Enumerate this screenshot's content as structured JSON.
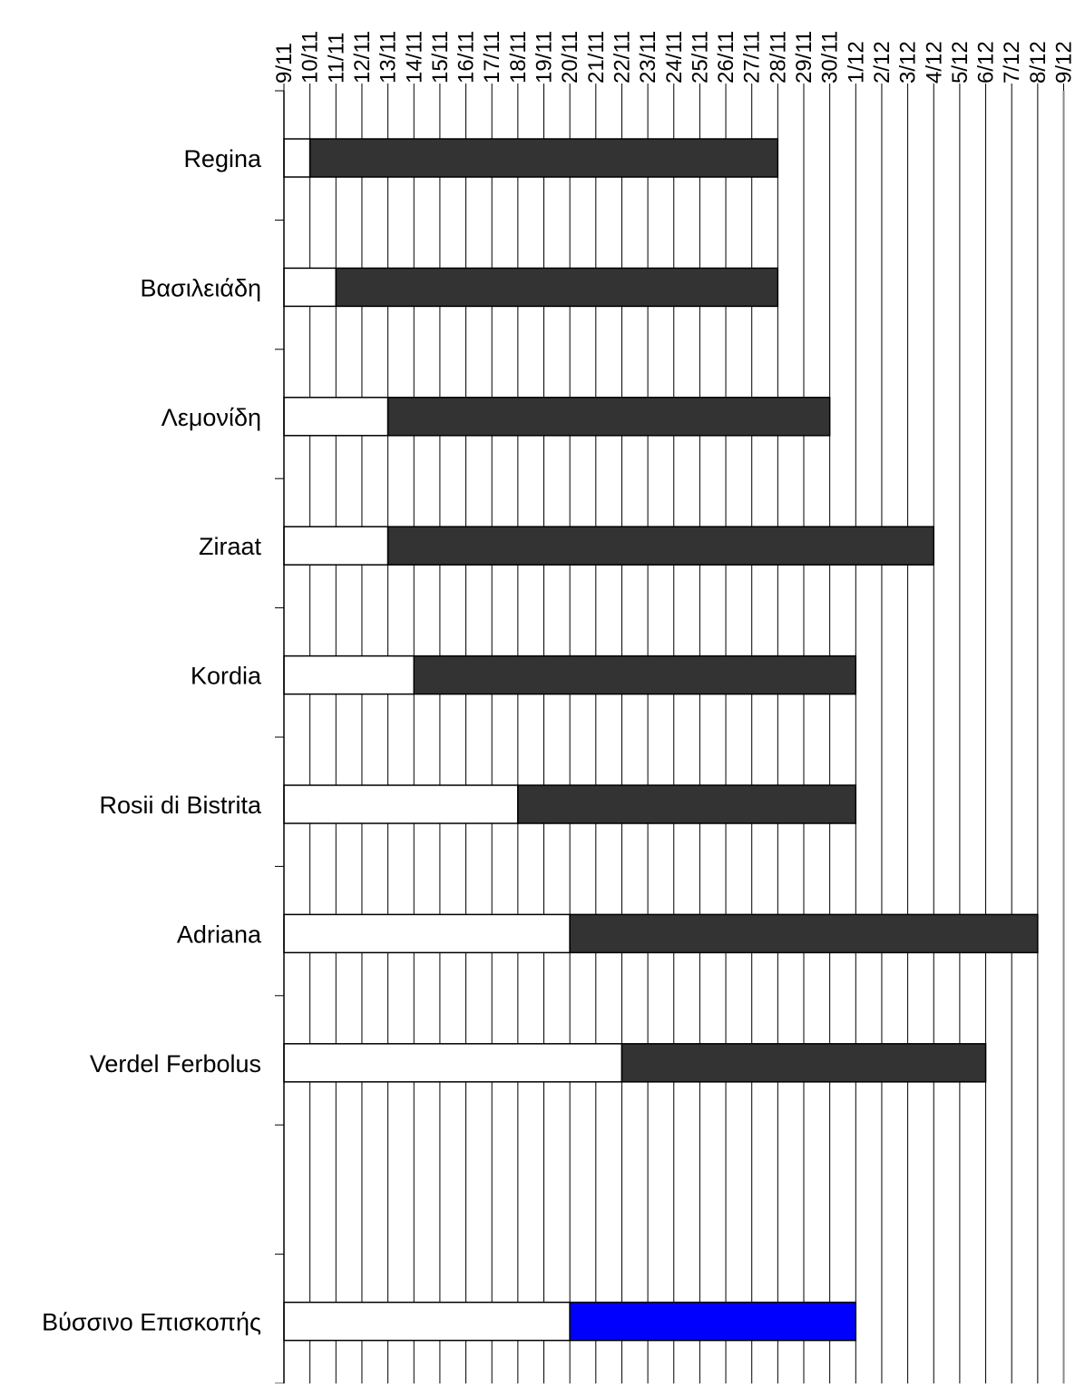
{
  "chart_data": {
    "type": "bar",
    "orientation": "horizontal",
    "stacked": true,
    "title": "",
    "xlabel": "",
    "ylabel": "",
    "x_axis": {
      "position": "top",
      "tick_labels": [
        "9/11",
        "10/11",
        "11/11",
        "12/11",
        "13/11",
        "14/11",
        "15/11",
        "16/11",
        "17/11",
        "18/11",
        "19/11",
        "20/11",
        "21/11",
        "22/11",
        "23/11",
        "24/11",
        "25/11",
        "26/11",
        "27/11",
        "28/11",
        "29/11",
        "30/11",
        "1/12",
        "2/12",
        "3/12",
        "4/12",
        "5/12",
        "6/12",
        "7/12",
        "8/12",
        "9/12"
      ],
      "range_days": [
        0,
        30
      ],
      "grid": true
    },
    "categories": [
      "Regina",
      "Βασιλειάδη",
      "Λεμονίδη",
      "Ziraat",
      "Kordia",
      "Rosii di Bistrita",
      "Adriana",
      "Verdel Ferbolus",
      "",
      "Βύσσινο Επισκοπής"
    ],
    "series": [
      {
        "role": "offset",
        "values": [
          1,
          2,
          4,
          4,
          5,
          9,
          11,
          13,
          null,
          11
        ]
      },
      {
        "role": "duration",
        "values": [
          18,
          17,
          17,
          21,
          17,
          13,
          18,
          14,
          null,
          11
        ]
      }
    ],
    "bars": [
      {
        "category": "Regina",
        "start": "10/11",
        "end": "28/11",
        "color": "#333333"
      },
      {
        "category": "Βασιλειάδη",
        "start": "11/11",
        "end": "28/11",
        "color": "#333333"
      },
      {
        "category": "Λεμονίδη",
        "start": "13/11",
        "end": "30/11",
        "color": "#333333"
      },
      {
        "category": "Ziraat",
        "start": "13/11",
        "end": "4/12",
        "color": "#333333"
      },
      {
        "category": "Kordia",
        "start": "14/11",
        "end": "1/12",
        "color": "#333333"
      },
      {
        "category": "Rosii di Bistrita",
        "start": "18/11",
        "end": "1/12",
        "color": "#333333"
      },
      {
        "category": "Adriana",
        "start": "20/11",
        "end": "8/12",
        "color": "#333333"
      },
      {
        "category": "Verdel Ferbolus",
        "start": "22/11",
        "end": "6/12",
        "color": "#333333"
      },
      {
        "category": "Βύσσινο Επισκοπής",
        "start": "20/11",
        "end": "1/12",
        "color": "#0000ff"
      }
    ],
    "colors": {
      "offset_fill": "#ffffff",
      "duration_fill": "#333333",
      "highlight_fill": "#0000ff",
      "grid": "#000000",
      "background": "#ffffff"
    },
    "legend": "none"
  }
}
